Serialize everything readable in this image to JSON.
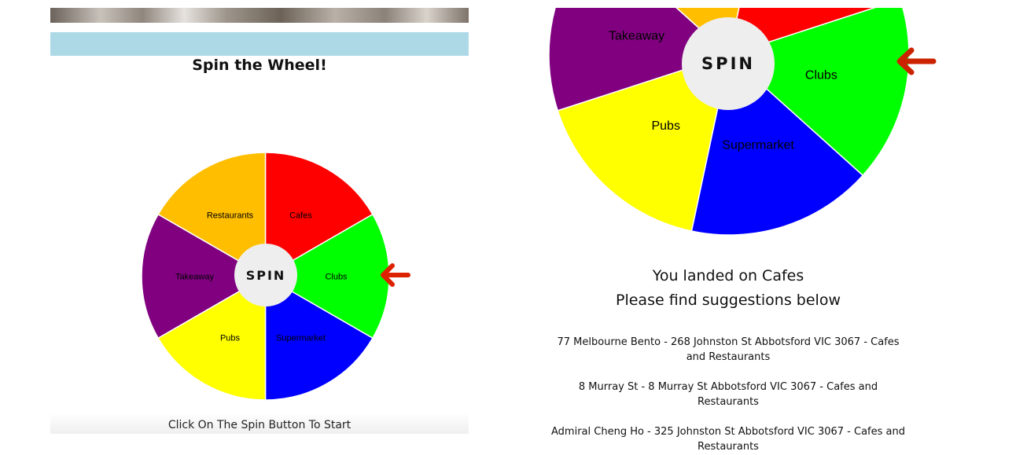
{
  "left": {
    "title": "Spin the Wheel!",
    "spin_label": "SPIN",
    "footer_text": "Click On The Spin Button To Start"
  },
  "wheel": {
    "segments": [
      {
        "label": "Cafes",
        "color": "#ff0000"
      },
      {
        "label": "Clubs",
        "color": "#00ff00"
      },
      {
        "label": "Supermarket",
        "color": "#0000ff"
      },
      {
        "label": "Pubs",
        "color": "#ffff00"
      },
      {
        "label": "Takeaway",
        "color": "#800080"
      },
      {
        "label": "Restaurants",
        "color": "#ffbf00"
      }
    ],
    "pointer_color": "#dd2200"
  },
  "right": {
    "spin_label": "SPIN",
    "result_line1": "You landed on Cafes",
    "result_line2": "Please find suggestions below",
    "suggestions": [
      "77 Melbourne Bento - 268 Johnston St Abbotsford VIC 3067 - Cafes and Restaurants",
      "8 Murray St - 8 Murray St Abbotsford VIC 3067 - Cafes and Restaurants",
      "Admiral Cheng Ho - 325 Johnston St Abbotsford VIC 3067 - Cafes and Restaurants"
    ]
  }
}
